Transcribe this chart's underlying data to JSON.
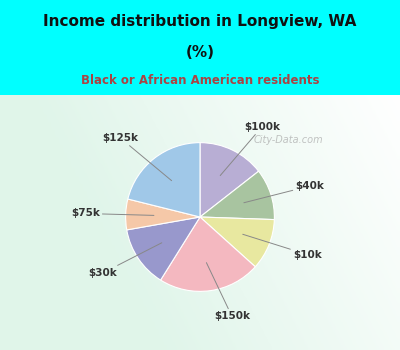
{
  "title_line1": "Income distribution in Longview, WA",
  "title_line2": "(%)",
  "subtitle": "Black or African American residents",
  "labels": [
    "$100k",
    "$40k",
    "$10k",
    "$150k",
    "$30k",
    "$75k",
    "$125k"
  ],
  "sizes": [
    13,
    10,
    10,
    20,
    12,
    6,
    19
  ],
  "colors": [
    "#b8aed4",
    "#a8c4a0",
    "#e8e8a0",
    "#f4b8c0",
    "#9898cc",
    "#f5c8a8",
    "#a0c8e8"
  ],
  "bg_color_top": "#00ffff",
  "title_color": "#111111",
  "subtitle_color": "#aa4444",
  "label_color": "#333333",
  "watermark": "City-Data.com",
  "watermark_color": "#aaaaaa",
  "startangle": 90,
  "label_fontsize": 7.5,
  "title_fontsize": 11,
  "subtitle_fontsize": 8.5
}
